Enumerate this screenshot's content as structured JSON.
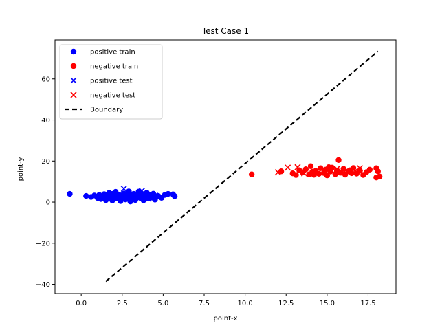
{
  "chart_data": {
    "type": "scatter",
    "title": "Test Case 1",
    "xlabel": "point-x",
    "ylabel": "point-y",
    "xlim": [
      -1.6,
      19.2
    ],
    "ylim": [
      -44.5,
      79
    ],
    "xticks": [
      0.0,
      2.5,
      5.0,
      7.5,
      10.0,
      12.5,
      15.0,
      17.5
    ],
    "xtick_labels": [
      "0.0",
      "2.5",
      "5.0",
      "7.5",
      "10.0",
      "12.5",
      "15.0",
      "17.5"
    ],
    "yticks": [
      -40,
      -20,
      0,
      20,
      40,
      60
    ],
    "ytick_labels": [
      "−40",
      "−20",
      "0",
      "20",
      "40",
      "60"
    ],
    "grid": false,
    "legend_position": "top-left",
    "legend": [
      "positive train",
      "negative train",
      "positive test",
      "negative test",
      "Boundary"
    ],
    "series": [
      {
        "name": "positive train",
        "marker": "circle",
        "color": "#0000ff",
        "points": [
          [
            -0.7,
            4.0
          ],
          [
            0.3,
            3.0
          ],
          [
            0.6,
            2.5
          ],
          [
            0.8,
            3.2
          ],
          [
            1.0,
            2.0
          ],
          [
            1.1,
            3.5
          ],
          [
            1.2,
            1.5
          ],
          [
            1.3,
            2.8
          ],
          [
            1.4,
            3.9
          ],
          [
            1.5,
            1.0
          ],
          [
            1.6,
            2.2
          ],
          [
            1.7,
            4.5
          ],
          [
            1.8,
            3.1
          ],
          [
            1.9,
            0.8
          ],
          [
            2.0,
            2.6
          ],
          [
            2.1,
            5.0
          ],
          [
            2.2,
            1.8
          ],
          [
            2.3,
            3.6
          ],
          [
            2.4,
            0.5
          ],
          [
            2.5,
            2.9
          ],
          [
            2.6,
            4.2
          ],
          [
            2.7,
            1.3
          ],
          [
            2.8,
            3.3
          ],
          [
            2.9,
            5.2
          ],
          [
            3.0,
            0.3
          ],
          [
            3.1,
            2.4
          ],
          [
            3.2,
            4.0
          ],
          [
            3.3,
            1.0
          ],
          [
            3.4,
            3.0
          ],
          [
            3.5,
            5.1
          ],
          [
            3.6,
            2.0
          ],
          [
            3.7,
            3.8
          ],
          [
            3.8,
            0.9
          ],
          [
            3.9,
            2.7
          ],
          [
            4.0,
            4.6
          ],
          [
            4.1,
            1.7
          ],
          [
            4.2,
            3.4
          ],
          [
            4.3,
            2.2
          ],
          [
            4.4,
            4.1
          ],
          [
            4.5,
            1.2
          ],
          [
            4.7,
            3.0
          ],
          [
            4.9,
            2.1
          ],
          [
            5.1,
            3.5
          ],
          [
            5.3,
            4.0
          ],
          [
            5.6,
            3.8
          ],
          [
            5.7,
            2.9
          ],
          [
            2.2,
            3.0
          ],
          [
            2.6,
            1.9
          ],
          [
            3.0,
            3.5
          ],
          [
            3.4,
            2.2
          ],
          [
            1.9,
            4.0
          ],
          [
            2.8,
            2.4
          ]
        ]
      },
      {
        "name": "negative train",
        "marker": "circle",
        "color": "#ff0000",
        "points": [
          [
            10.4,
            13.5
          ],
          [
            12.2,
            15.0
          ],
          [
            12.9,
            14.0
          ],
          [
            13.1,
            13.2
          ],
          [
            13.3,
            15.5
          ],
          [
            13.5,
            14.5
          ],
          [
            13.7,
            16.0
          ],
          [
            13.9,
            13.5
          ],
          [
            14.0,
            17.5
          ],
          [
            14.1,
            14.8
          ],
          [
            14.3,
            15.2
          ],
          [
            14.5,
            13.8
          ],
          [
            14.6,
            16.5
          ],
          [
            14.8,
            14.2
          ],
          [
            14.9,
            15.8
          ],
          [
            15.0,
            13.0
          ],
          [
            15.2,
            14.9
          ],
          [
            15.3,
            16.8
          ],
          [
            15.5,
            13.6
          ],
          [
            15.6,
            15.4
          ],
          [
            15.7,
            20.5
          ],
          [
            15.8,
            14.3
          ],
          [
            16.0,
            16.2
          ],
          [
            16.1,
            13.4
          ],
          [
            16.3,
            15.0
          ],
          [
            16.5,
            14.1
          ],
          [
            16.6,
            16.6
          ],
          [
            16.8,
            13.9
          ],
          [
            17.0,
            15.3
          ],
          [
            17.2,
            13.2
          ],
          [
            17.4,
            14.6
          ],
          [
            17.6,
            15.8
          ],
          [
            18.0,
            16.5
          ],
          [
            18.1,
            15.0
          ],
          [
            18.2,
            12.5
          ],
          [
            18.0,
            12.0
          ],
          [
            14.2,
            13.3
          ],
          [
            15.1,
            17.0
          ],
          [
            16.4,
            15.5
          ]
        ]
      },
      {
        "name": "positive test",
        "marker": "x",
        "color": "#0000ff",
        "points": [
          [
            1.7,
            1.0
          ],
          [
            2.0,
            3.5
          ],
          [
            2.6,
            6.5
          ],
          [
            2.9,
            4.2
          ],
          [
            3.3,
            2.8
          ],
          [
            3.7,
            5.5
          ],
          [
            4.1,
            1.6
          ],
          [
            4.5,
            3.2
          ],
          [
            2.3,
            2.0
          ],
          [
            3.9,
            4.0
          ]
        ]
      },
      {
        "name": "negative test",
        "marker": "x",
        "color": "#ff0000",
        "points": [
          [
            12.0,
            14.5
          ],
          [
            12.6,
            16.8
          ],
          [
            13.2,
            17.0
          ],
          [
            14.4,
            15.2
          ],
          [
            15.2,
            15.8
          ],
          [
            16.0,
            14.4
          ],
          [
            16.7,
            15.0
          ],
          [
            17.0,
            16.5
          ],
          [
            13.6,
            14.0
          ],
          [
            15.6,
            16.2
          ]
        ]
      },
      {
        "name": "Boundary",
        "style": "dashed-line",
        "color": "#000000",
        "points": [
          [
            1.5,
            -38.6
          ],
          [
            18.1,
            73.5
          ]
        ]
      }
    ]
  }
}
